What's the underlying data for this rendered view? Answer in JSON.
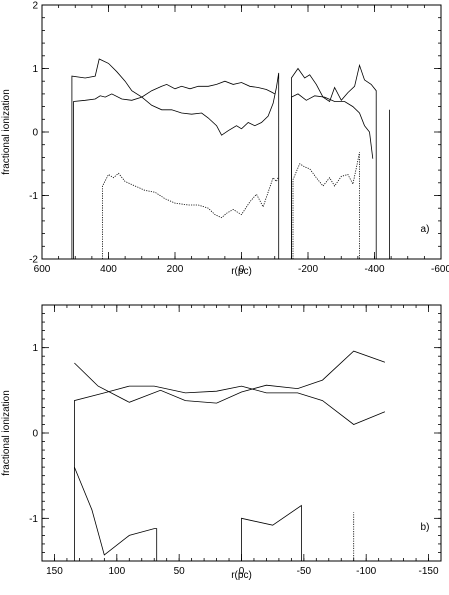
{
  "chart_data": [
    {
      "type": "line",
      "panel_label": "a)",
      "xlabel": "r(pc)",
      "ylabel": "fractional ionization",
      "xlim": [
        600,
        -600
      ],
      "ylim": [
        -2,
        2
      ],
      "x_ticks": [
        600,
        400,
        200,
        0,
        -200,
        -400,
        -600
      ],
      "x_tick_labels": [
        "600",
        "400",
        "200",
        "0",
        "-200",
        "-400",
        "-600"
      ],
      "x_minor_step": 50,
      "y_ticks": [
        -2,
        -1,
        0,
        1,
        2
      ],
      "y_tick_labels": [
        "-2",
        "-1",
        "0",
        "1",
        "2"
      ],
      "y_minor_step": 0.2,
      "grid": false,
      "series": [
        {
          "style": "solid",
          "points": [
            [
              510,
              -2
            ],
            [
              510,
              0.88
            ],
            [
              470,
              0.85
            ],
            [
              440,
              0.88
            ],
            [
              428,
              1.15
            ],
            [
              400,
              1.08
            ],
            [
              375,
              0.95
            ],
            [
              350,
              0.8
            ],
            [
              330,
              0.65
            ],
            [
              300,
              0.55
            ],
            [
              270,
              0.42
            ],
            [
              240,
              0.35
            ],
            [
              210,
              0.35
            ],
            [
              180,
              0.3
            ],
            [
              150,
              0.28
            ],
            [
              120,
              0.3
            ],
            [
              100,
              0.22
            ],
            [
              75,
              0.1
            ],
            [
              60,
              -0.05
            ],
            [
              40,
              0.02
            ],
            [
              15,
              0.1
            ],
            [
              0,
              0.05
            ],
            [
              -20,
              0.15
            ],
            [
              -40,
              0.1
            ],
            [
              -60,
              0.15
            ],
            [
              -80,
              0.25
            ],
            [
              -95,
              0.45
            ],
            [
              -105,
              0.7
            ],
            [
              -112,
              0.93
            ],
            [
              -112,
              -2
            ]
          ]
        },
        {
          "style": "solid",
          "points": [
            [
              505,
              -2
            ],
            [
              505,
              0.48
            ],
            [
              470,
              0.5
            ],
            [
              440,
              0.52
            ],
            [
              425,
              0.57
            ],
            [
              410,
              0.55
            ],
            [
              390,
              0.6
            ],
            [
              360,
              0.52
            ],
            [
              330,
              0.5
            ],
            [
              300,
              0.55
            ],
            [
              270,
              0.65
            ],
            [
              240,
              0.72
            ],
            [
              225,
              0.75
            ],
            [
              200,
              0.68
            ],
            [
              180,
              0.72
            ],
            [
              155,
              0.68
            ],
            [
              130,
              0.72
            ],
            [
              100,
              0.72
            ],
            [
              75,
              0.75
            ],
            [
              50,
              0.8
            ],
            [
              25,
              0.75
            ],
            [
              0,
              0.78
            ],
            [
              -25,
              0.72
            ],
            [
              -50,
              0.7
            ],
            [
              -75,
              0.67
            ],
            [
              -90,
              0.63
            ],
            [
              -100,
              0.6
            ]
          ]
        },
        {
          "style": "solid",
          "points": [
            [
              -150,
              -2
            ],
            [
              -150,
              0.85
            ],
            [
              -170,
              1.0
            ],
            [
              -190,
              0.85
            ],
            [
              -205,
              0.9
            ],
            [
              -225,
              0.75
            ],
            [
              -245,
              0.55
            ],
            [
              -265,
              0.48
            ],
            [
              -280,
              0.7
            ],
            [
              -300,
              0.5
            ],
            [
              -320,
              0.62
            ],
            [
              -340,
              0.72
            ],
            [
              -355,
              1.05
            ],
            [
              -370,
              0.82
            ],
            [
              -390,
              0.75
            ],
            [
              -405,
              0.65
            ],
            [
              -405,
              -2
            ]
          ]
        },
        {
          "style": "solid",
          "points": [
            [
              -150,
              -2
            ],
            [
              -150,
              0.55
            ],
            [
              -170,
              0.6
            ],
            [
              -195,
              0.5
            ],
            [
              -220,
              0.57
            ],
            [
              -250,
              0.55
            ],
            [
              -280,
              0.48
            ],
            [
              -310,
              0.48
            ],
            [
              -335,
              0.4
            ],
            [
              -355,
              0.3
            ],
            [
              -370,
              0.1
            ],
            [
              -385,
              0.0
            ],
            [
              -395,
              -0.42
            ]
          ]
        },
        {
          "style": "dotted",
          "points": [
            [
              418,
              -2
            ],
            [
              418,
              -0.85
            ],
            [
              400,
              -0.67
            ],
            [
              385,
              -0.72
            ],
            [
              370,
              -0.65
            ],
            [
              350,
              -0.78
            ],
            [
              320,
              -0.85
            ],
            [
              290,
              -0.92
            ],
            [
              260,
              -0.95
            ],
            [
              230,
              -1.05
            ],
            [
              200,
              -1.12
            ],
            [
              160,
              -1.15
            ],
            [
              130,
              -1.15
            ],
            [
              100,
              -1.2
            ],
            [
              80,
              -1.3
            ],
            [
              60,
              -1.35
            ],
            [
              45,
              -1.28
            ],
            [
              25,
              -1.22
            ],
            [
              0,
              -1.3
            ],
            [
              -25,
              -1.1
            ],
            [
              -45,
              -0.98
            ],
            [
              -65,
              -1.18
            ],
            [
              -80,
              -0.95
            ],
            [
              -95,
              -0.72
            ],
            [
              -105,
              -0.78
            ],
            [
              -110,
              -0.72
            ]
          ]
        },
        {
          "style": "dotted",
          "points": [
            [
              -155,
              -2
            ],
            [
              -155,
              -0.75
            ],
            [
              -175,
              -0.5
            ],
            [
              -190,
              -0.55
            ],
            [
              -205,
              -0.58
            ],
            [
              -225,
              -0.72
            ],
            [
              -245,
              -0.85
            ],
            [
              -265,
              -0.72
            ],
            [
              -280,
              -0.85
            ],
            [
              -300,
              -0.7
            ],
            [
              -320,
              -0.67
            ],
            [
              -335,
              -0.82
            ],
            [
              -348,
              -0.5
            ],
            [
              -355,
              -0.32
            ],
            [
              -355,
              -2
            ]
          ]
        },
        {
          "style": "solid",
          "points": [
            [
              -445,
              -2
            ],
            [
              -445,
              0.35
            ]
          ]
        }
      ]
    },
    {
      "type": "line",
      "panel_label": "b)",
      "xlabel": "r(pc)",
      "ylabel": "fractional ionization",
      "xlim": [
        160,
        -160
      ],
      "ylim": [
        -1.5,
        1.5
      ],
      "x_ticks": [
        150,
        100,
        50,
        0,
        -50,
        -100,
        -150
      ],
      "x_tick_labels": [
        "150",
        "100",
        "50",
        "0",
        "-50",
        "-100",
        "-150"
      ],
      "x_minor_step": 10,
      "y_ticks": [
        -1,
        0,
        1
      ],
      "y_tick_labels": [
        "-1",
        "0",
        "1"
      ],
      "y_minor_step": 0.1,
      "grid": false,
      "series": [
        {
          "style": "solid",
          "points": [
            [
              134,
              -1.5
            ],
            [
              134,
              0.38
            ],
            [
              110,
              0.47
            ],
            [
              90,
              0.55
            ],
            [
              70,
              0.55
            ],
            [
              45,
              0.47
            ],
            [
              20,
              0.49
            ],
            [
              0,
              0.55
            ],
            [
              -20,
              0.47
            ],
            [
              -45,
              0.47
            ],
            [
              -65,
              0.38
            ],
            [
              -90,
              0.1
            ],
            [
              -115,
              0.25
            ]
          ]
        },
        {
          "style": "solid",
          "points": [
            [
              134,
              0.82
            ],
            [
              115,
              0.55
            ],
            [
              90,
              0.36
            ],
            [
              65,
              0.5
            ],
            [
              45,
              0.38
            ],
            [
              20,
              0.35
            ],
            [
              0,
              0.48
            ],
            [
              -20,
              0.56
            ],
            [
              -45,
              0.52
            ],
            [
              -65,
              0.62
            ],
            [
              -90,
              0.96
            ],
            [
              -115,
              0.83
            ]
          ]
        },
        {
          "style": "solid",
          "points": [
            [
              134,
              -0.4
            ],
            [
              120,
              -0.9
            ],
            [
              110,
              -1.43
            ],
            [
              90,
              -1.2
            ],
            [
              70,
              -1.12
            ],
            [
              68,
              -1.12
            ],
            [
              68,
              -1.5
            ]
          ]
        },
        {
          "style": "solid",
          "points": [
            [
              0,
              -1.5
            ],
            [
              0,
              -1.0
            ],
            [
              -25,
              -1.08
            ],
            [
              -48,
              -0.85
            ],
            [
              -48,
              -1.5
            ]
          ]
        },
        {
          "style": "dotted",
          "points": [
            [
              -90,
              -1.5
            ],
            [
              -90,
              -0.93
            ]
          ]
        }
      ]
    }
  ]
}
